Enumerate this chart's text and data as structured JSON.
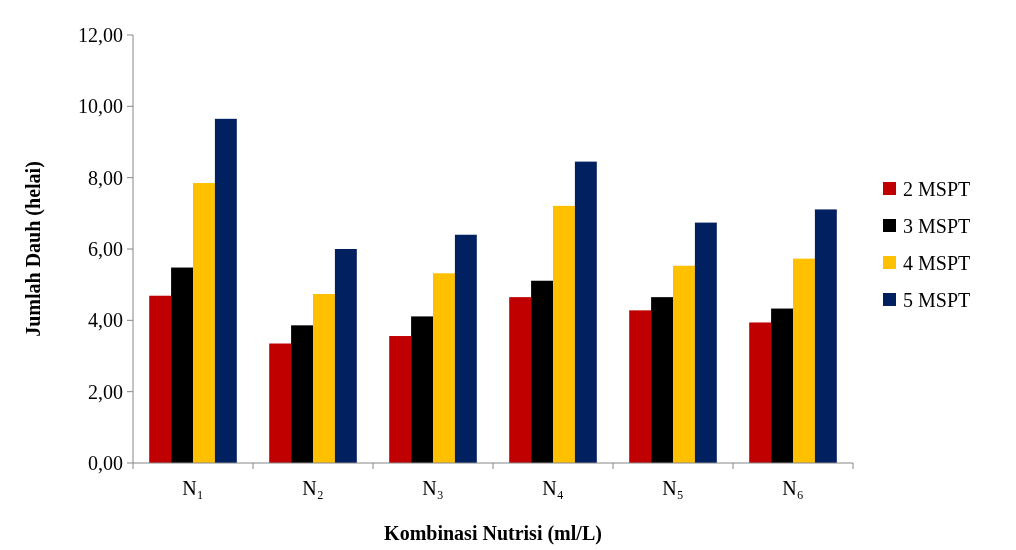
{
  "chart_data": {
    "type": "bar",
    "xlabel": "Kombinasi Nutrisi  (ml/L)",
    "ylabel": "Jumlah Dauh (helai)",
    "categories": [
      "N₁",
      "N₂",
      "N₃",
      "N₄",
      "N₅",
      "N₆"
    ],
    "series": [
      {
        "name": "2 MSPT",
        "color": "#c00000",
        "values": [
          4.69,
          3.35,
          3.56,
          4.65,
          4.28,
          3.94
        ]
      },
      {
        "name": "3 MSPT",
        "color": "#000000",
        "values": [
          5.48,
          3.86,
          4.11,
          5.11,
          4.65,
          4.33
        ]
      },
      {
        "name": "4 MSPT",
        "color": "#ffc000",
        "values": [
          7.85,
          4.74,
          5.32,
          7.21,
          5.53,
          5.73
        ]
      },
      {
        "name": "5 MSPT",
        "color": "#002060",
        "values": [
          9.65,
          6.0,
          6.4,
          8.45,
          6.74,
          7.11
        ]
      }
    ],
    "ylim": [
      0,
      12
    ],
    "yticks": [
      {
        "value": 0,
        "label": "0,00"
      },
      {
        "value": 2,
        "label": "2,00"
      },
      {
        "value": 4,
        "label": "4,00"
      },
      {
        "value": 6,
        "label": "6,00"
      },
      {
        "value": 8,
        "label": "8,00"
      },
      {
        "value": 10,
        "label": "10,00"
      },
      {
        "value": 12,
        "label": "12,00"
      }
    ],
    "legend": "right"
  }
}
